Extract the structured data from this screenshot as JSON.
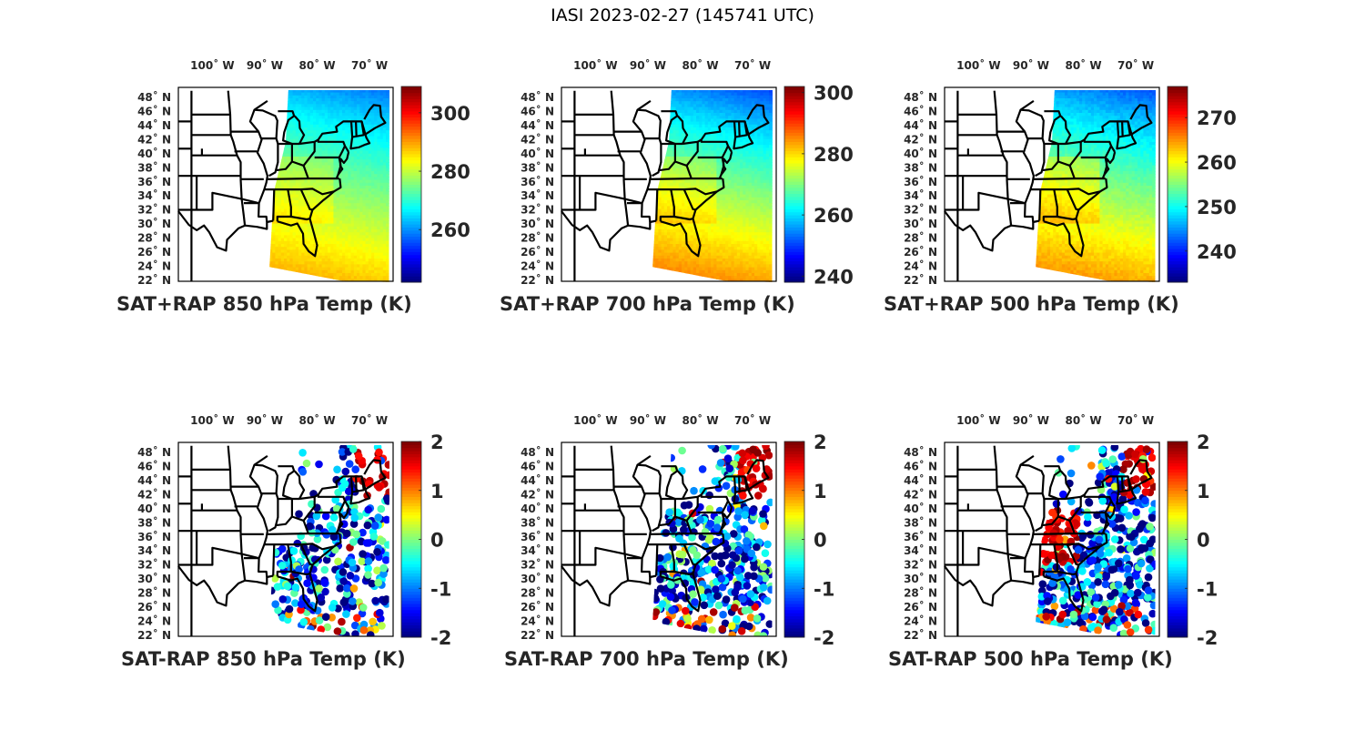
{
  "figure_title": "IASI 2023-02-27 (145741 UTC)",
  "chart_data": [
    {
      "type": "heatmap",
      "title": "SAT+RAP 850 hPa Temp (K)",
      "x_tick_labels": [
        "100˚ W",
        "90˚ W",
        "80˚ W",
        "70˚ W"
      ],
      "x_ticks": [
        -100,
        -90,
        -80,
        -70
      ],
      "y_tick_labels": [
        "48˚ N",
        "46˚ N",
        "44˚ N",
        "42˚ N",
        "40˚ N",
        "38˚ N",
        "36˚ N",
        "34˚ N",
        "32˚ N",
        "30˚ N",
        "28˚ N",
        "26˚ N",
        "24˚ N",
        "22˚ N"
      ],
      "colorbar": {
        "clim": [
          242,
          309
        ],
        "ticks": [
          260,
          280,
          300
        ],
        "tick_labels": [
          "260",
          "280",
          "300"
        ],
        "colormap": "jet"
      },
      "field": {
        "north": 262,
        "south": 290,
        "west_bias": 4
      }
    },
    {
      "type": "heatmap",
      "title": "SAT+RAP 700 hPa Temp (K)",
      "x_tick_labels": [
        "100˚ W",
        "90˚ W",
        "80˚ W",
        "70˚ W"
      ],
      "x_ticks": [
        -100,
        -90,
        -80,
        -70
      ],
      "y_tick_labels": [
        "48˚ N",
        "46˚ N",
        "44˚ N",
        "42˚ N",
        "40˚ N",
        "38˚ N",
        "36˚ N",
        "34˚ N",
        "32˚ N",
        "30˚ N",
        "28˚ N",
        "26˚ N",
        "24˚ N",
        "22˚ N"
      ],
      "colorbar": {
        "clim": [
          238,
          302
        ],
        "ticks": [
          240,
          260,
          280,
          300
        ],
        "tick_labels": [
          "240",
          "260",
          "280",
          "300"
        ],
        "colormap": "jet"
      },
      "field": {
        "north": 255,
        "south": 287,
        "west_bias": 4
      }
    },
    {
      "type": "heatmap",
      "title": "SAT+RAP 500 hPa Temp (K)",
      "x_tick_labels": [
        "100˚ W",
        "90˚ W",
        "80˚ W",
        "70˚ W"
      ],
      "x_ticks": [
        -100,
        -90,
        -80,
        -70
      ],
      "y_tick_labels": [
        "48˚ N",
        "46˚ N",
        "44˚ N",
        "42˚ N",
        "40˚ N",
        "38˚ N",
        "36˚ N",
        "34˚ N",
        "32˚ N",
        "30˚ N",
        "28˚ N",
        "26˚ N",
        "24˚ N",
        "22˚ N"
      ],
      "colorbar": {
        "clim": [
          233,
          277
        ],
        "ticks": [
          240,
          250,
          260,
          270
        ],
        "tick_labels": [
          "240",
          "250",
          "260",
          "270"
        ],
        "colormap": "jet"
      },
      "field": {
        "north": 245,
        "south": 266,
        "west_bias": 4
      }
    },
    {
      "type": "scatter",
      "title": "SAT-RAP 850 hPa Temp (K)",
      "x_tick_labels": [
        "100˚ W",
        "90˚ W",
        "80˚ W",
        "70˚ W"
      ],
      "x_ticks": [
        -100,
        -90,
        -80,
        -70
      ],
      "y_tick_labels": [
        "48˚ N",
        "46˚ N",
        "44˚ N",
        "42˚ N",
        "40˚ N",
        "38˚ N",
        "36˚ N",
        "34˚ N",
        "32˚ N",
        "30˚ N",
        "28˚ N",
        "26˚ N",
        "24˚ N",
        "22˚ N"
      ],
      "colorbar": {
        "clim": [
          -2,
          2
        ],
        "ticks": [
          -2,
          -1,
          0,
          1,
          2
        ],
        "tick_labels": [
          "-2",
          "-1",
          "0",
          "1",
          "2"
        ],
        "colormap": "jet"
      },
      "field": {
        "northeast": 2,
        "south": -1.5,
        "spread": 1.2,
        "west_edge_lon": -84.5,
        "density": 0.55
      }
    },
    {
      "type": "scatter",
      "title": "SAT-RAP 700 hPa Temp (K)",
      "x_tick_labels": [
        "100˚ W",
        "90˚ W",
        "80˚ W",
        "70˚ W"
      ],
      "x_ticks": [
        -100,
        -90,
        -80,
        -70
      ],
      "y_tick_labels": [
        "48˚ N",
        "46˚ N",
        "44˚ N",
        "42˚ N",
        "40˚ N",
        "38˚ N",
        "36˚ N",
        "34˚ N",
        "32˚ N",
        "30˚ N",
        "28˚ N",
        "26˚ N",
        "24˚ N",
        "22˚ N"
      ],
      "colorbar": {
        "clim": [
          -2,
          2
        ],
        "ticks": [
          -2,
          -1,
          0,
          1,
          2
        ],
        "tick_labels": [
          "-2",
          "-1",
          "0",
          "1",
          "2"
        ],
        "colormap": "jet"
      },
      "field": {
        "northeast": 2,
        "south": -1.6,
        "spread": 1.3,
        "west_edge_lon": -88,
        "density": 0.7
      }
    },
    {
      "type": "scatter",
      "title": "SAT-RAP 500 hPa Temp (K)",
      "x_tick_labels": [
        "100˚ W",
        "90˚ W",
        "80˚ W",
        "70˚ W"
      ],
      "x_ticks": [
        -100,
        -90,
        -80,
        -70
      ],
      "y_tick_labels": [
        "48˚ N",
        "46˚ N",
        "44˚ N",
        "42˚ N",
        "40˚ N",
        "38˚ N",
        "36˚ N",
        "34˚ N",
        "32˚ N",
        "30˚ N",
        "28˚ N",
        "26˚ N",
        "24˚ N",
        "22˚ N"
      ],
      "colorbar": {
        "clim": [
          -2,
          2
        ],
        "ticks": [
          -2,
          -1,
          0,
          1,
          2
        ],
        "tick_labels": [
          "-2",
          "-1",
          "0",
          "1",
          "2"
        ],
        "colormap": "jet"
      },
      "field": {
        "northeast": 2,
        "south": -1.7,
        "spread": 1.2,
        "west_edge_lon": -88,
        "density": 0.85,
        "warm_core": 2
      }
    }
  ]
}
